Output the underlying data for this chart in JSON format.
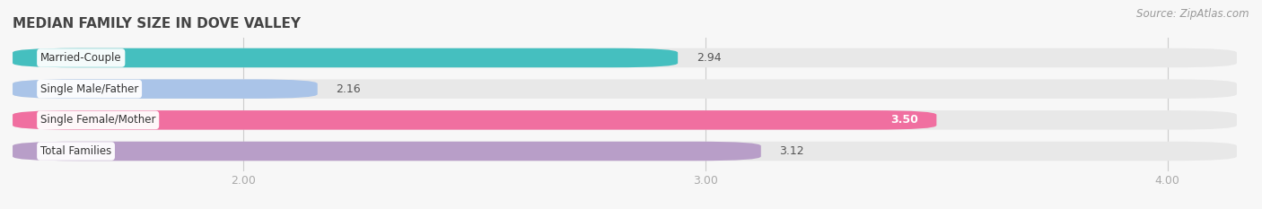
{
  "title": "MEDIAN FAMILY SIZE IN DOVE VALLEY",
  "source": "Source: ZipAtlas.com",
  "categories": [
    "Married-Couple",
    "Single Male/Father",
    "Single Female/Mother",
    "Total Families"
  ],
  "values": [
    2.94,
    2.16,
    3.5,
    3.12
  ],
  "bar_colors": [
    "#45bfbf",
    "#aac4e8",
    "#f06fa0",
    "#b89ec8"
  ],
  "xlim_data": [
    1.5,
    4.15
  ],
  "xmin": 1.5,
  "xmax": 4.15,
  "xticks": [
    2.0,
    3.0,
    4.0
  ],
  "xtick_labels": [
    "2.00",
    "3.00",
    "4.00"
  ],
  "bg_color": "#f7f7f7",
  "bar_bg_color": "#e8e8e8",
  "bar_height": 0.62,
  "value_label_inside": [
    false,
    false,
    true,
    false
  ],
  "value_label_colors": [
    "#555555",
    "#555555",
    "#ffffff",
    "#555555"
  ],
  "title_color": "#444444",
  "tick_color": "#aaaaaa",
  "source_color": "#999999",
  "title_fontsize": 11,
  "label_fontsize": 8.5,
  "value_fontsize": 9
}
